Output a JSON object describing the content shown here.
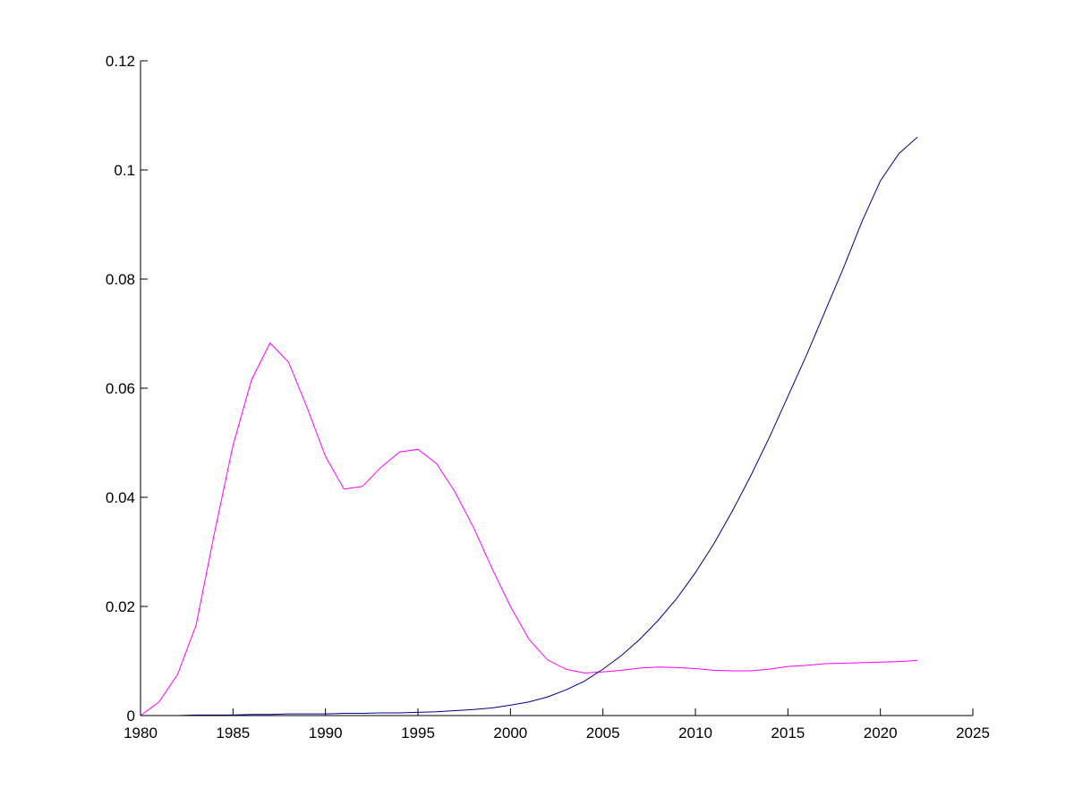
{
  "chart_data": {
    "type": "line",
    "title": "",
    "xlabel": "",
    "ylabel": "",
    "xlim": [
      1980,
      2025
    ],
    "ylim": [
      0,
      0.12
    ],
    "grid": false,
    "legend": "none",
    "x_ticks": [
      "1980",
      "1985",
      "1990",
      "1995",
      "2000",
      "2005",
      "2010",
      "2015",
      "2020",
      "2025"
    ],
    "y_ticks": [
      "0",
      "0.02",
      "0.04",
      "0.06",
      "0.08",
      "0.1",
      "0.12"
    ],
    "x": [
      1980,
      1981,
      1982,
      1983,
      1984,
      1985,
      1986,
      1987,
      1988,
      1989,
      1990,
      1991,
      1992,
      1993,
      1994,
      1995,
      1996,
      1997,
      1998,
      1999,
      2000,
      2001,
      2002,
      2003,
      2004,
      2005,
      2006,
      2007,
      2008,
      2009,
      2010,
      2011,
      2012,
      2013,
      2014,
      2015,
      2016,
      2017,
      2018,
      2019,
      2020,
      2021,
      2022
    ],
    "series": [
      {
        "color": "#ff00ff",
        "values": [
          0.0,
          0.0025,
          0.0075,
          0.0165,
          0.0335,
          0.0495,
          0.0615,
          0.0683,
          0.0648,
          0.0565,
          0.0475,
          0.0415,
          0.042,
          0.0455,
          0.0483,
          0.0488,
          0.0462,
          0.041,
          0.0345,
          0.027,
          0.02,
          0.014,
          0.0102,
          0.0085,
          0.0078,
          0.008,
          0.0083,
          0.0087,
          0.0089,
          0.0088,
          0.0086,
          0.0083,
          0.0082,
          0.0082,
          0.0085,
          0.009,
          0.0092,
          0.0095,
          0.0096,
          0.0097,
          0.0098,
          0.0099,
          0.0101
        ]
      },
      {
        "color": "#00008b",
        "values": [
          0.0,
          0.0,
          0.0,
          0.0001,
          0.0001,
          0.0001,
          0.0002,
          0.0002,
          0.0003,
          0.0003,
          0.0003,
          0.0004,
          0.0004,
          0.0005,
          0.0005,
          0.0006,
          0.0007,
          0.0009,
          0.0011,
          0.0014,
          0.0019,
          0.0025,
          0.0034,
          0.0047,
          0.0063,
          0.0085,
          0.011,
          0.014,
          0.0175,
          0.0215,
          0.0262,
          0.0315,
          0.0375,
          0.044,
          0.051,
          0.0585,
          0.066,
          0.074,
          0.082,
          0.0905,
          0.098,
          0.103,
          0.106
        ]
      }
    ]
  }
}
